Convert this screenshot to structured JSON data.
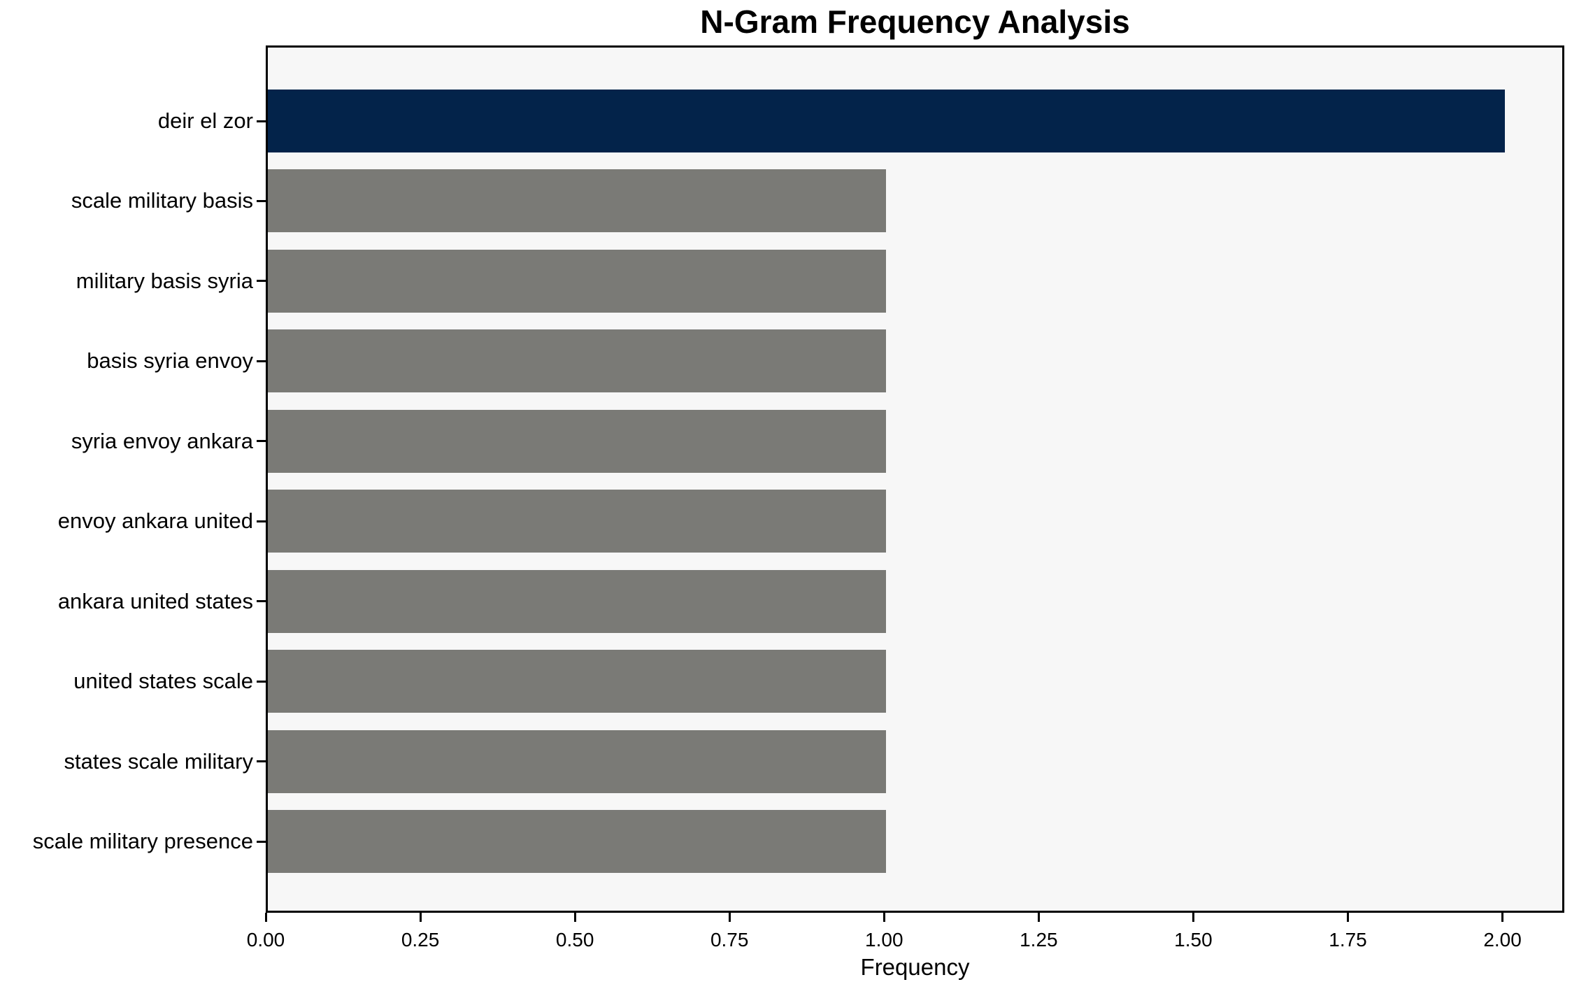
{
  "chart_data": {
    "type": "bar",
    "orientation": "horizontal",
    "title": "N-Gram Frequency Analysis",
    "xlabel": "Frequency",
    "ylabel": "",
    "categories": [
      "deir el zor",
      "scale military basis",
      "military basis syria",
      "basis syria envoy",
      "syria envoy ankara",
      "envoy ankara united",
      "ankara united states",
      "united states scale",
      "states scale military",
      "scale military presence"
    ],
    "values": [
      2,
      1,
      1,
      1,
      1,
      1,
      1,
      1,
      1,
      1
    ],
    "xticks": [
      "0.00",
      "0.25",
      "0.50",
      "0.75",
      "1.00",
      "1.25",
      "1.50",
      "1.75",
      "2.00"
    ],
    "xlim": [
      0,
      2.1
    ],
    "grid": false,
    "legend": "none",
    "colors": {
      "highlight_bar": "#03234a",
      "default_bar": "#7a7a76",
      "plot_background": "#f7f7f7",
      "figure_background": "#ffffff",
      "spine": "#000000",
      "text": "#000000"
    }
  }
}
